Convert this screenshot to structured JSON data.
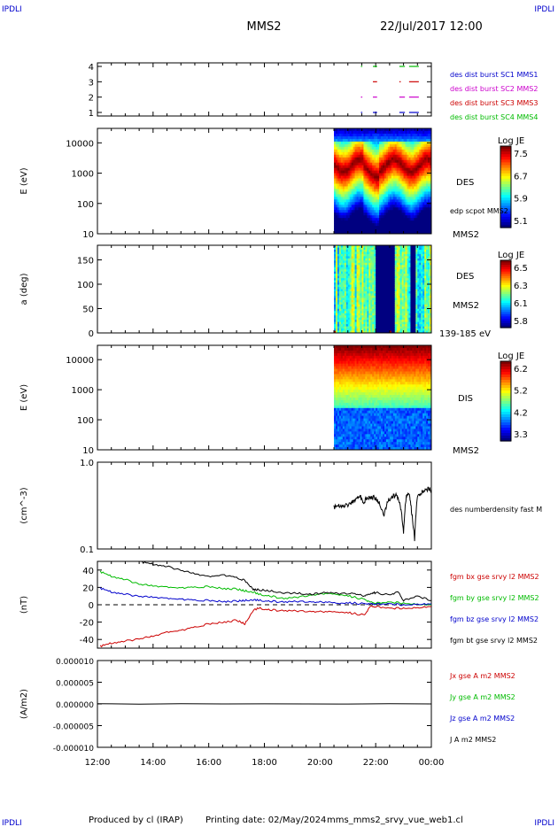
{
  "header": {
    "corner_tl": "IPDLI",
    "corner_tr": "IPDLI",
    "spacecraft": "MMS2",
    "datetime": "22/Jul/2017 12:00"
  },
  "footer": {
    "produced": "Produced by cl (IRAP)",
    "printing": "Printing date: 02/May/2024",
    "script": "mms_mms2_srvy_vue_web1.cl",
    "corner_bl": "IPDLI",
    "corner_br": "IPDLI"
  },
  "chart_data": [
    {
      "type": "scatter",
      "panel": "availability",
      "yticks": [
        "1",
        "2",
        "3",
        "4"
      ],
      "legend": [
        {
          "text": "des dist burst SC1 MMS1",
          "color": "#0000cc"
        },
        {
          "text": "des dist burst SC2 MMS2",
          "color": "#cc00cc"
        },
        {
          "text": "des dist burst SC3 MMS3",
          "color": "#cc0000"
        },
        {
          "text": "des dist burst SC4 MMS4",
          "color": "#00bb00"
        }
      ],
      "segments": [
        {
          "sc": 1,
          "t": [
            [
              21.47,
              21.52
            ],
            [
              21.9,
              22.05
            ],
            [
              22.85,
              23.05
            ],
            [
              23.2,
              23.55
            ]
          ]
        },
        {
          "sc": 2,
          "t": [
            [
              21.47,
              21.52
            ],
            [
              21.9,
              22.05
            ],
            [
              22.85,
              23.05
            ],
            [
              23.2,
              23.55
            ]
          ]
        },
        {
          "sc": 3,
          "t": [
            [
              21.9,
              22.05
            ],
            [
              22.85,
              22.9
            ],
            [
              23.2,
              23.55
            ]
          ]
        },
        {
          "sc": 4,
          "t": [
            [
              21.47,
              21.52
            ],
            [
              21.9,
              22.05
            ],
            [
              22.85,
              23.05
            ],
            [
              23.2,
              23.55
            ]
          ]
        }
      ]
    },
    {
      "type": "heatmap",
      "panel": "des-energy",
      "ylabel": "E (eV)",
      "yticks": [
        "10",
        "100",
        "1000",
        "10000"
      ],
      "colorbar": {
        "title": "Log JE",
        "ticks": [
          "7.5",
          "6.7",
          "5.9",
          "5.1"
        ]
      },
      "labels": [
        "DES",
        "edp scpot MMS2",
        "MMS2"
      ],
      "data_start_hour": 20.5
    },
    {
      "type": "heatmap",
      "panel": "des-pitch",
      "ylabel": "a (deg)",
      "yticks": [
        "0",
        "50",
        "100",
        "150"
      ],
      "colorbar": {
        "title": "Log JE",
        "ticks": [
          "6.5",
          "6.3",
          "6.1",
          "5.8"
        ]
      },
      "labels": [
        "DES",
        "MMS2",
        "139-185 eV"
      ],
      "data_start_hour": 20.5
    },
    {
      "type": "heatmap",
      "panel": "dis-energy",
      "ylabel": "E (eV)",
      "yticks": [
        "10",
        "100",
        "1000",
        "10000"
      ],
      "colorbar": {
        "title": "Log JE",
        "ticks": [
          "6.2",
          "5.2",
          "4.2",
          "3.3"
        ]
      },
      "labels": [
        "DIS",
        "MMS2"
      ],
      "data_start_hour": 20.5
    },
    {
      "type": "line",
      "panel": "density",
      "ylabel": "(cm^-3)",
      "yticks": [
        "0.1",
        "1.0"
      ],
      "ylim": [
        0.1,
        1.0
      ],
      "legend": [
        {
          "text": "des numberdensity fast M",
          "color": "#000000"
        }
      ],
      "series": [
        {
          "color": "#000000",
          "x": [
            20.5,
            20.7,
            20.9,
            21.1,
            21.2,
            21.35,
            21.45,
            21.55,
            21.65,
            21.8,
            21.95,
            22.1,
            22.3,
            22.45,
            22.6,
            22.75,
            22.9,
            23.0,
            23.1,
            23.2,
            23.3,
            23.4,
            23.5,
            23.65,
            23.8,
            23.95,
            24.0
          ],
          "y": [
            0.3,
            0.32,
            0.31,
            0.34,
            0.36,
            0.38,
            0.4,
            0.33,
            0.38,
            0.4,
            0.39,
            0.35,
            0.25,
            0.36,
            0.4,
            0.42,
            0.3,
            0.15,
            0.4,
            0.45,
            0.25,
            0.12,
            0.4,
            0.45,
            0.48,
            0.5,
            0.45
          ]
        }
      ]
    },
    {
      "type": "line",
      "panel": "magnetic-field",
      "ylabel": "(nT)",
      "yticks": [
        "-40",
        "-20",
        "0",
        "20",
        "40"
      ],
      "ylim": [
        -50,
        50
      ],
      "legend": [
        {
          "text": "fgm bx gse srvy l2 MMS2",
          "color": "#cc0000"
        },
        {
          "text": "fgm by gse srvy l2 MMS2",
          "color": "#00bb00"
        },
        {
          "text": "fgm bz gse srvy l2 MMS2",
          "color": "#0000cc"
        },
        {
          "text": "fgm bt gse srvy l2 MMS2",
          "color": "#000000"
        }
      ],
      "series": [
        {
          "color": "#cc0000",
          "x": [
            12.1,
            12.5,
            13,
            13.5,
            14,
            14.5,
            15,
            15.5,
            16,
            16.5,
            17,
            17.3,
            17.6,
            17.8,
            18.2,
            18.7,
            19.2,
            19.7,
            20.2,
            20.7,
            21.2,
            21.6,
            21.8,
            22,
            22.5,
            23,
            23.5,
            24
          ],
          "y": [
            -48,
            -44,
            -42,
            -39,
            -36,
            -32,
            -30,
            -26,
            -22,
            -20,
            -18,
            -22,
            -6,
            -4,
            -6,
            -7,
            -7,
            -8,
            -8,
            -8,
            -10,
            -12,
            -2,
            -2,
            -4,
            -4,
            -3,
            -2
          ]
        },
        {
          "color": "#00bb00",
          "x": [
            12.1,
            12.5,
            13,
            13.5,
            14,
            14.5,
            15,
            15.5,
            16,
            16.5,
            17,
            17.3,
            17.6,
            17.8,
            18.2,
            18.7,
            19.2,
            19.7,
            20.2,
            20.7,
            21.2,
            21.6,
            21.8,
            22,
            22.5,
            23,
            23.5,
            24
          ],
          "y": [
            38,
            33,
            29,
            24,
            22,
            20,
            19,
            20,
            21,
            19,
            18,
            16,
            15,
            12,
            10,
            7,
            9,
            11,
            13,
            12,
            9,
            6,
            3,
            2,
            3,
            2,
            1,
            0
          ]
        },
        {
          "color": "#0000cc",
          "x": [
            12.1,
            12.5,
            13,
            13.5,
            14,
            14.5,
            15,
            15.5,
            16,
            16.5,
            17,
            17.3,
            17.6,
            17.8,
            18.2,
            18.7,
            19.2,
            19.7,
            20.2,
            20.7,
            21.2,
            21.6,
            21.8,
            22,
            22.5,
            23,
            23.5,
            24
          ],
          "y": [
            19,
            15,
            12,
            10,
            9,
            7,
            6,
            5,
            5,
            4,
            4,
            5,
            6,
            5,
            4,
            3,
            4,
            3,
            3,
            2,
            2,
            1,
            1,
            1,
            1,
            0,
            1,
            1
          ]
        },
        {
          "color": "#000000",
          "x": [
            13.6,
            14,
            14.5,
            15,
            15.5,
            16,
            16.5,
            17,
            17.3,
            17.6,
            17.8,
            18.2,
            18.7,
            19.2,
            19.7,
            20.2,
            20.7,
            21.2,
            21.6,
            21.8,
            22,
            22.5,
            22.8,
            23,
            23.5,
            24
          ],
          "y": [
            49,
            47,
            44,
            40,
            36,
            32,
            34,
            31,
            28,
            18,
            17,
            16,
            14,
            13,
            12,
            14,
            13,
            13,
            10,
            13,
            14,
            11,
            15,
            5,
            10,
            5
          ]
        }
      ]
    },
    {
      "type": "line",
      "panel": "current-density",
      "ylabel": "(A/m2)",
      "yticks": [
        "-0.000010",
        "-0.000005",
        "0.000000",
        "0.000005",
        "0.000010"
      ],
      "ylim": [
        -1e-05,
        1e-05
      ],
      "xticks": [
        "12:00",
        "14:00",
        "16:00",
        "18:00",
        "20:00",
        "22:00",
        "00:00"
      ],
      "legend": [
        {
          "text": "Jx gse A m2 MMS2",
          "color": "#cc0000"
        },
        {
          "text": "Jy gse A m2 MMS2",
          "color": "#00bb00"
        },
        {
          "text": "Jz gse A m2 MMS2",
          "color": "#0000cc"
        },
        {
          "text": "J A m2 MMS2",
          "color": "#000000"
        }
      ],
      "series": [
        {
          "color": "#000000",
          "x": [
            12,
            24
          ],
          "y": [
            0,
            0
          ]
        }
      ]
    }
  ]
}
